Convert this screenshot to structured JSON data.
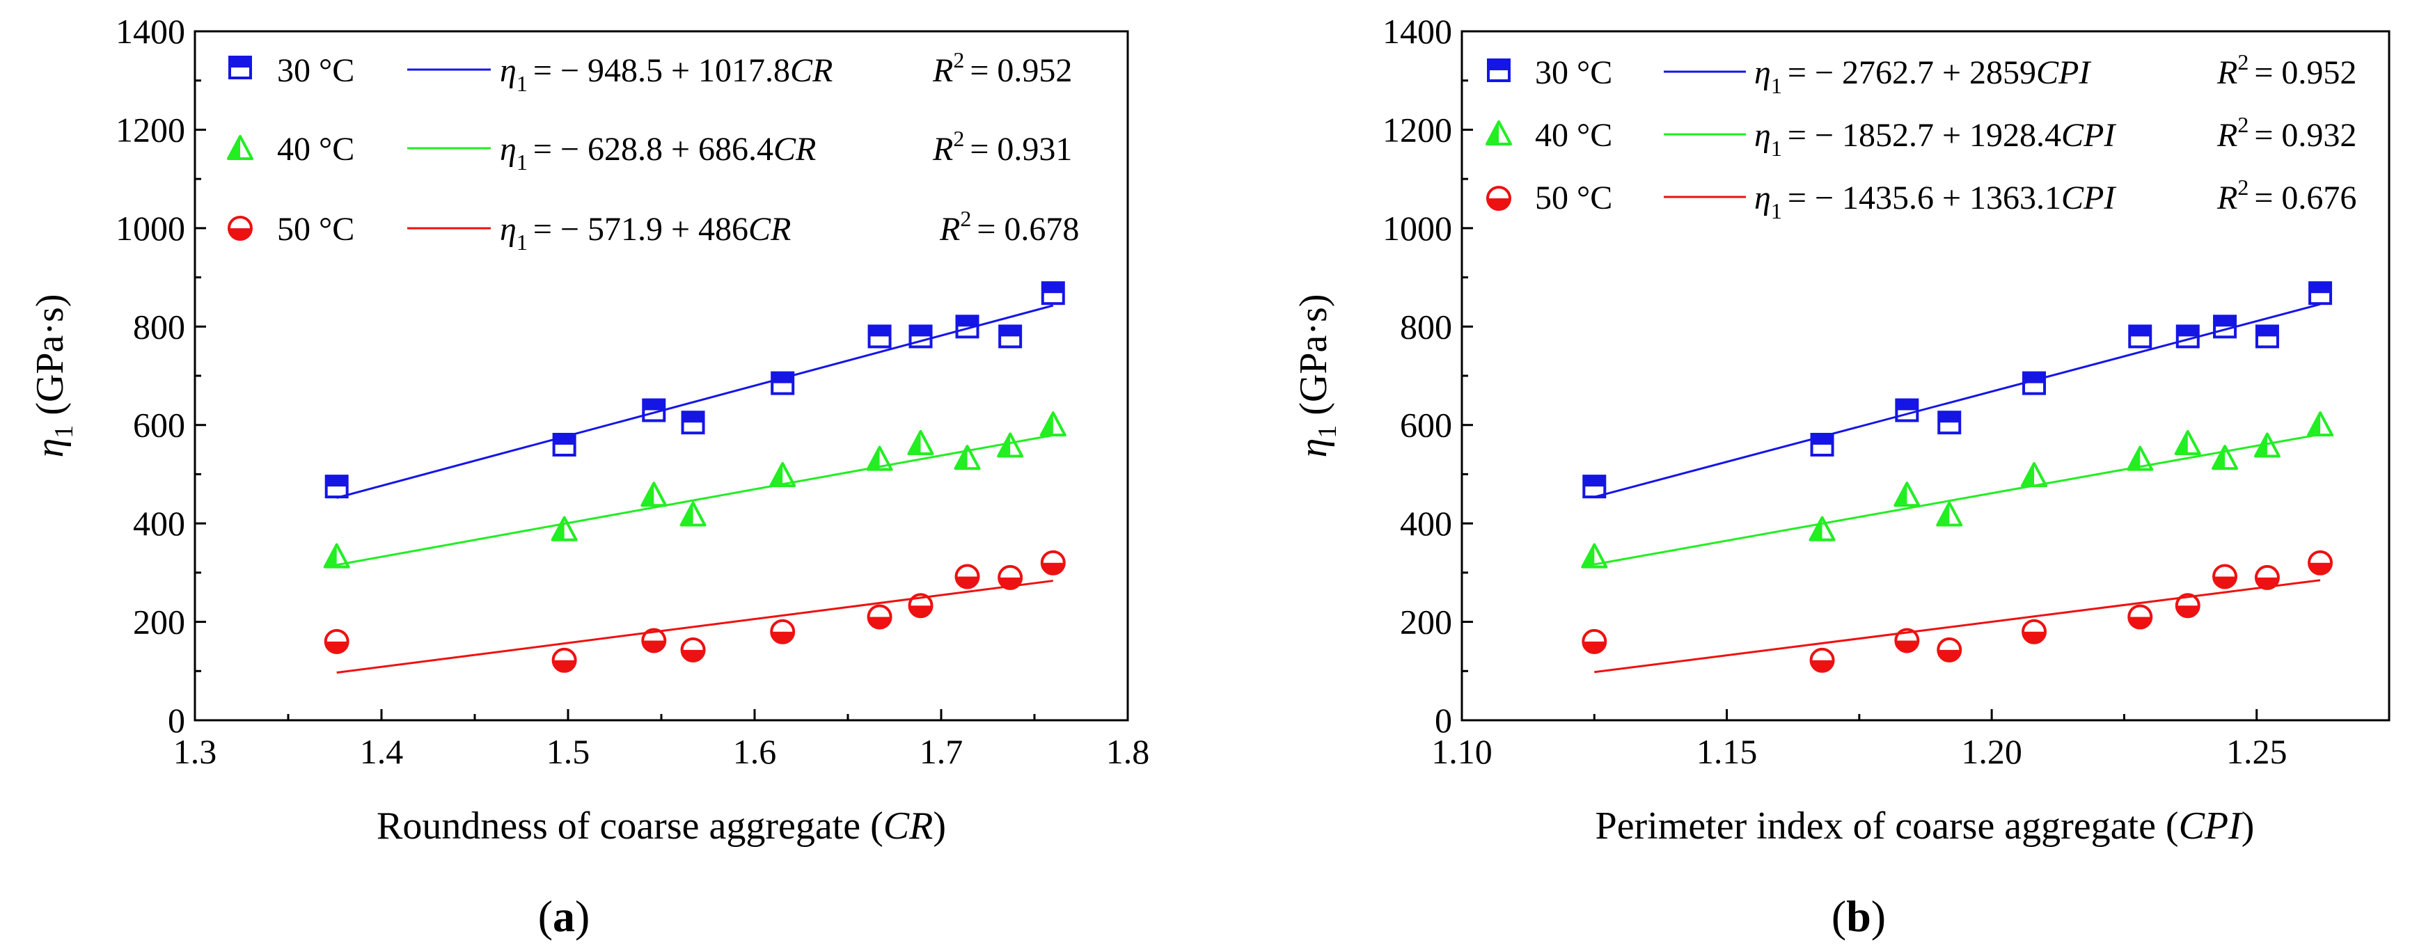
{
  "chart_data": [
    {
      "type": "scatter",
      "panel_label": "(a)",
      "panel_letter": "a",
      "xlabel": "Roundness of coarse aggregate (CR)",
      "xlabel_main": "Roundness of coarse aggregate (",
      "xlabel_var": "CR",
      "ylabel_symbol": "η",
      "ylabel_sub": "1",
      "ylabel_unit": " (GPa·s)",
      "xlim": [
        1.3,
        1.8
      ],
      "ylim": [
        0,
        1400
      ],
      "xticks": [
        1.3,
        1.4,
        1.5,
        1.6,
        1.7,
        1.8
      ],
      "xtick_labels": [
        "1.3",
        "1.4",
        "1.5",
        "1.6",
        "1.7",
        "1.8"
      ],
      "yticks": [
        0,
        200,
        400,
        600,
        800,
        1000,
        1200,
        1400
      ],
      "ytick_labels": [
        "0",
        "200",
        "400",
        "600",
        "800",
        "1000",
        "1200",
        "1400"
      ],
      "series": [
        {
          "name": "30 °C",
          "marker": "square",
          "color": "#1515e6",
          "x": [
            1.376,
            1.498,
            1.546,
            1.567,
            1.615,
            1.667,
            1.689,
            1.714,
            1.737,
            1.76
          ],
          "y": [
            475,
            560,
            630,
            605,
            685,
            780,
            780,
            800,
            780,
            868
          ],
          "fit": {
            "intercept": -948.5,
            "slope": 1017.8,
            "x_range": [
              1.376,
              1.76
            ]
          },
          "eq_prefix": "= − 948.5 + 1017.8",
          "eq_var": "CR",
          "r2": "= 0.952"
        },
        {
          "name": "40 °C",
          "marker": "triangle",
          "color": "#22ee22",
          "x": [
            1.376,
            1.498,
            1.546,
            1.567,
            1.615,
            1.667,
            1.689,
            1.714,
            1.737,
            1.76
          ],
          "y": [
            330,
            385,
            455,
            415,
            495,
            528,
            560,
            530,
            555,
            598
          ],
          "fit": {
            "intercept": -628.8,
            "slope": 686.4,
            "x_range": [
              1.376,
              1.76
            ]
          },
          "eq_prefix": "= − 628.8 + 686.4",
          "eq_var": "CR",
          "r2": "= 0.931"
        },
        {
          "name": "50 °C",
          "marker": "circle",
          "color": "#ee1111",
          "x": [
            1.376,
            1.498,
            1.546,
            1.567,
            1.615,
            1.667,
            1.689,
            1.714,
            1.737,
            1.76
          ],
          "y": [
            160,
            122,
            162,
            143,
            180,
            210,
            233,
            292,
            290,
            320
          ],
          "fit": {
            "intercept": -571.9,
            "slope": 486,
            "x_range": [
              1.376,
              1.76
            ]
          },
          "eq_prefix": "= − 571.9 + 486",
          "eq_var": "CR",
          "r2": "= 0.678"
        }
      ]
    },
    {
      "type": "scatter",
      "panel_label": "(b)",
      "panel_letter": "b",
      "xlabel": "Perimeter index of coarse aggregate (CPI)",
      "xlabel_main": "Perimeter index of coarse aggregate (",
      "xlabel_var": "CPI",
      "ylabel_symbol": "η",
      "ylabel_sub": "1",
      "ylabel_unit": " (GPa·s)",
      "xlim": [
        1.1,
        1.275
      ],
      "ylim": [
        0,
        1400
      ],
      "xticks": [
        1.1,
        1.15,
        1.2,
        1.25
      ],
      "xtick_labels": [
        "1.10",
        "1.15",
        "1.20",
        "1.25"
      ],
      "yticks": [
        0,
        200,
        400,
        600,
        800,
        1000,
        1200,
        1400
      ],
      "ytick_labels": [
        "0",
        "200",
        "400",
        "600",
        "800",
        "1000",
        "1200",
        "1400"
      ],
      "series": [
        {
          "name": "30 °C",
          "marker": "square",
          "color": "#1515e6",
          "x": [
            1.125,
            1.168,
            1.184,
            1.192,
            1.208,
            1.228,
            1.237,
            1.244,
            1.252,
            1.262
          ],
          "y": [
            475,
            560,
            630,
            605,
            685,
            780,
            780,
            800,
            780,
            868
          ],
          "fit": {
            "intercept": -2762.7,
            "slope": 2859,
            "x_range": [
              1.125,
              1.262
            ]
          },
          "eq_prefix": "= − 2762.7 + 2859",
          "eq_var": "CPI",
          "r2": "= 0.952"
        },
        {
          "name": "40 °C",
          "marker": "triangle",
          "color": "#22ee22",
          "x": [
            1.125,
            1.168,
            1.184,
            1.192,
            1.208,
            1.228,
            1.237,
            1.244,
            1.252,
            1.262
          ],
          "y": [
            330,
            385,
            455,
            415,
            495,
            528,
            560,
            530,
            555,
            598
          ],
          "fit": {
            "intercept": -1852.7,
            "slope": 1928.4,
            "x_range": [
              1.125,
              1.262
            ]
          },
          "eq_prefix": "= − 1852.7 + 1928.4",
          "eq_var": "CPI",
          "r2": "= 0.932"
        },
        {
          "name": "50 °C",
          "marker": "circle",
          "color": "#ee1111",
          "x": [
            1.125,
            1.168,
            1.184,
            1.192,
            1.208,
            1.228,
            1.237,
            1.244,
            1.252,
            1.262
          ],
          "y": [
            160,
            122,
            162,
            143,
            180,
            210,
            233,
            292,
            290,
            320
          ],
          "fit": {
            "intercept": -1435.6,
            "slope": 1363.1,
            "x_range": [
              1.125,
              1.262
            ]
          },
          "eq_prefix": "= − 1435.6 + 1363.1",
          "eq_var": "CPI",
          "r2": "= 0.676"
        }
      ]
    }
  ]
}
